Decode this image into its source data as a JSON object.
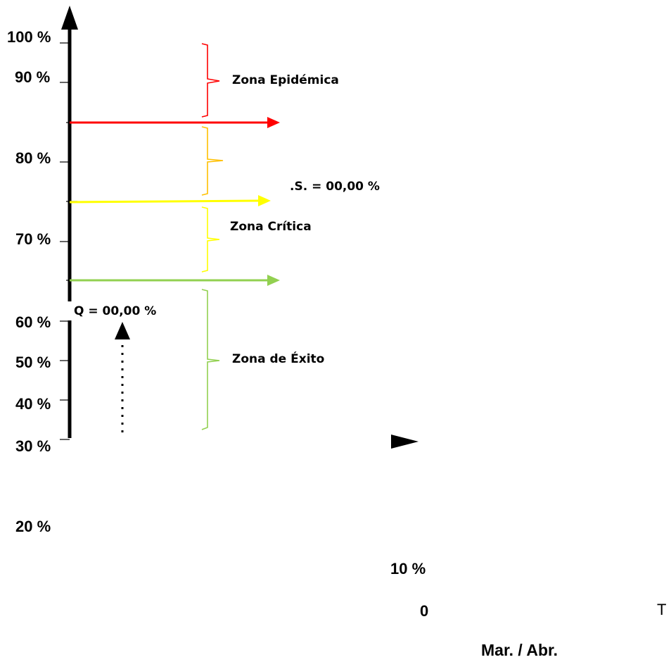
{
  "axis": {
    "ticks": [
      "100 %",
      "90 %",
      "80 %",
      "70 %",
      "60 %",
      "50 %",
      "40 %",
      "30 %"
    ],
    "extra_ticks": [
      "20 %",
      "10 %",
      "0"
    ]
  },
  "zones": {
    "epidemic": "Zona Epidémica",
    "critical": "Zona Crítica",
    "success": "Zona de Éxito"
  },
  "annotations": {
    "is_value": ".S. = 00,00 %",
    "q_value": "Q = 00,00 %",
    "t_label": "T",
    "period": "Mar. / Abr."
  },
  "colors": {
    "epidemic": "#ff0000",
    "alert": "#ffc000",
    "critical": "#ffff00",
    "success": "#92d050",
    "axis": "#000000"
  }
}
